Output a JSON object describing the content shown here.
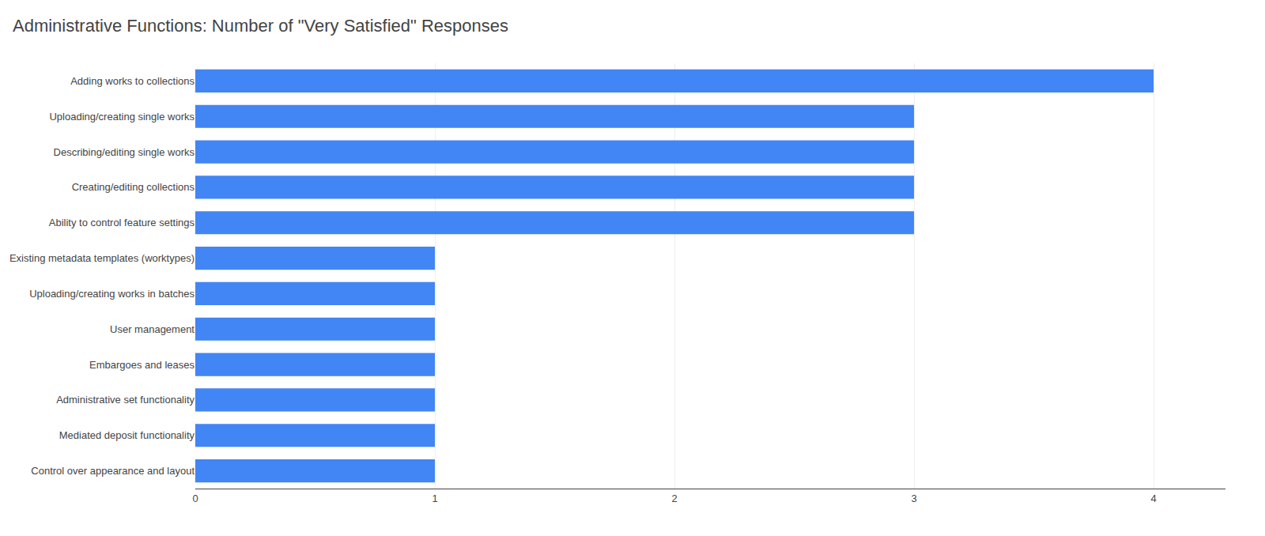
{
  "chart_data": {
    "type": "bar",
    "orientation": "horizontal",
    "title": "Administrative Functions: Number of \"Very Satisfied\" Responses",
    "categories": [
      "Control over appearance and layout",
      "Mediated deposit functionality",
      "Administrative set functionality",
      "Embargoes and leases",
      "User management",
      "Uploading/creating works in batches",
      "Existing metadata templates (worktypes)",
      "Ability to control feature settings",
      "Creating/editing collections",
      "Describing/editing single works",
      "Uploading/creating single works",
      "Adding works to collections"
    ],
    "values": [
      1,
      1,
      1,
      1,
      1,
      1,
      1,
      3,
      3,
      3,
      3,
      4
    ],
    "color": "#4285F4",
    "xlim": [
      0,
      4.3
    ],
    "xticks": [
      0,
      1,
      2,
      3,
      4
    ],
    "grid": true
  }
}
